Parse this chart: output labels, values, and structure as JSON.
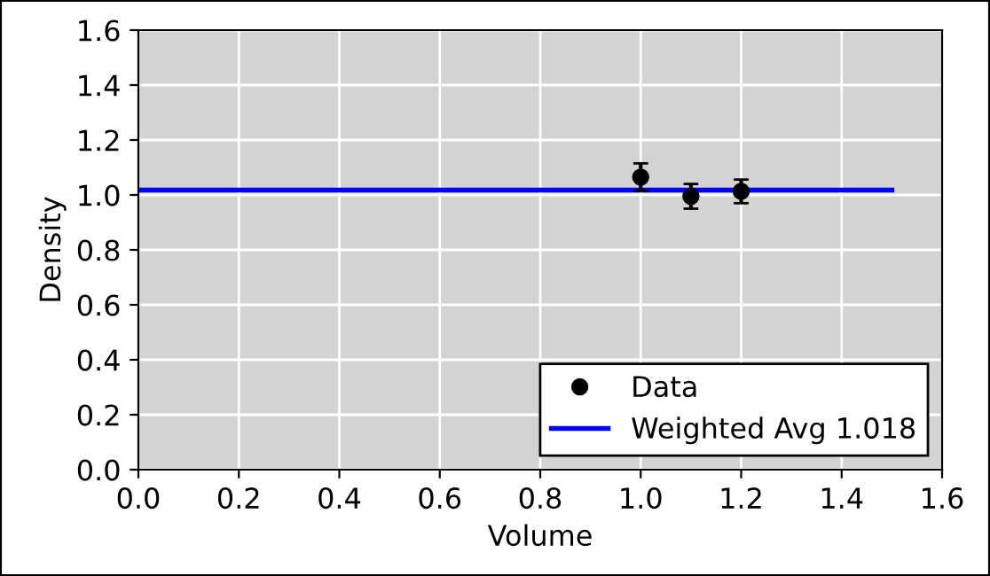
{
  "chart_data": {
    "type": "scatter",
    "xlabel": "Volume",
    "ylabel": "Density",
    "xlim": [
      0,
      1.6
    ],
    "ylim": [
      0,
      1.6
    ],
    "xticks": [
      {
        "value": 0,
        "label": "0.0"
      },
      {
        "value": 0.2,
        "label": "0.2"
      },
      {
        "value": 0.4,
        "label": "0.4"
      },
      {
        "value": 0.6,
        "label": "0.6"
      },
      {
        "value": 0.8,
        "label": "0.8"
      },
      {
        "value": 1.0,
        "label": "1.0"
      },
      {
        "value": 1.2,
        "label": "1.2"
      },
      {
        "value": 1.4,
        "label": "1.4"
      },
      {
        "value": 1.6,
        "label": "1.6"
      }
    ],
    "yticks": [
      {
        "value": 0,
        "label": "0.0"
      },
      {
        "value": 0.2,
        "label": "0.2"
      },
      {
        "value": 0.4,
        "label": "0.4"
      },
      {
        "value": 0.6,
        "label": "0.6"
      },
      {
        "value": 0.8,
        "label": "0.8"
      },
      {
        "value": 1.0,
        "label": "1.0"
      },
      {
        "value": 1.2,
        "label": "1.2"
      },
      {
        "value": 1.4,
        "label": "1.4"
      },
      {
        "value": 1.6,
        "label": "1.6"
      }
    ],
    "grid": true,
    "legend": "bottom right",
    "series": [
      {
        "name": "Data",
        "color": "#000000",
        "marker": "circle",
        "x": [
          1.0,
          1.1,
          1.2
        ],
        "values": [
          1.065,
          0.995,
          1.013
        ],
        "errors": [
          0.05,
          0.045,
          0.043
        ]
      },
      {
        "name": "Weighted Avg 1.018",
        "type": "line",
        "color": "#0000ff",
        "x": [
          0,
          1.5
        ],
        "values": [
          1.018,
          1.018
        ]
      }
    ]
  }
}
